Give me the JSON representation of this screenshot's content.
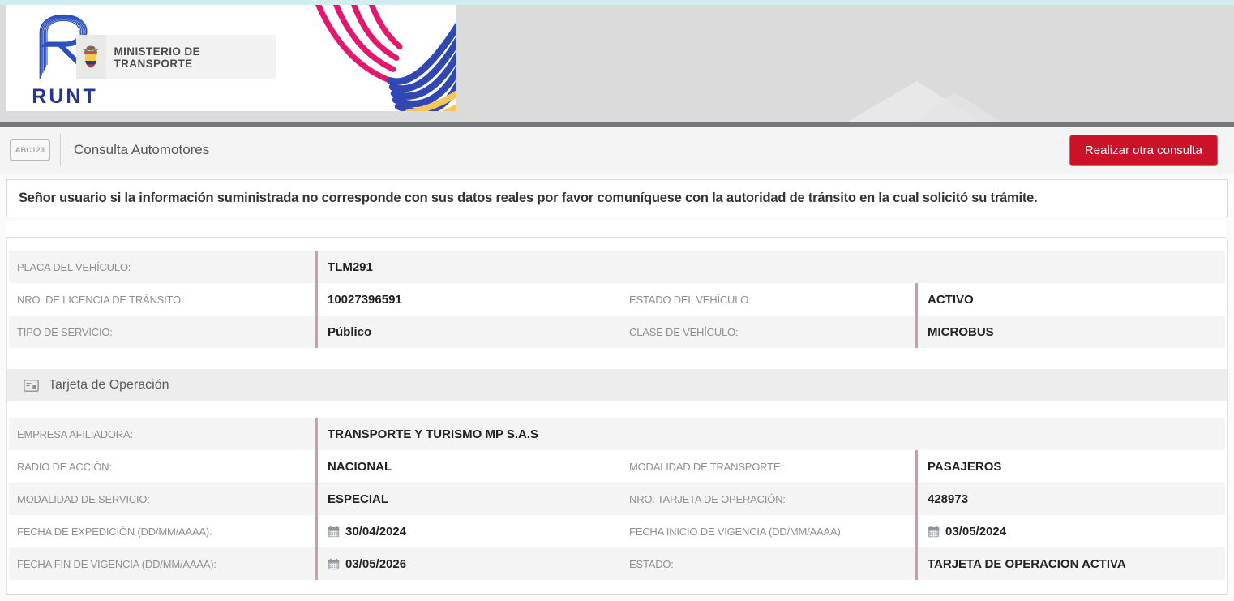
{
  "header": {
    "runt_wordmark": "RUNT",
    "ministry_name": "MINISTERIO DE TRANSPORTE"
  },
  "toolbar": {
    "plate_badge": "ABC123",
    "title": "Consulta Automotores",
    "new_search_button": "Realizar otra consulta"
  },
  "notice": "Señor usuario si la información suministrada no corresponde con sus datos reales por favor comuníquese con la autoridad de tránsito en la cual solicitó su trámite.",
  "vehicle_table": {
    "rows": [
      {
        "label": "PLACA DEL VEHÍCULO:",
        "value": "TLM291",
        "full": true
      },
      {
        "label": "NRO. DE LICENCIA DE TRÁNSITO:",
        "value": "10027396591",
        "label2": "ESTADO DEL VEHÍCULO:",
        "value2": "ACTIVO"
      },
      {
        "label": "TIPO DE SERVICIO:",
        "value": "Público",
        "label2": "CLASE DE VEHÍCULO:",
        "value2": "MICROBUS"
      }
    ]
  },
  "operation_card": {
    "title": "Tarjeta de Operación",
    "rows": [
      {
        "label": "EMPRESA AFILIADORA:",
        "value": "TRANSPORTE Y TURISMO MP S.A.S",
        "full": true
      },
      {
        "label": "RADIO DE ACCIÓN:",
        "value": "NACIONAL",
        "label2": "MODALIDAD DE TRANSPORTE:",
        "value2": "PASAJEROS"
      },
      {
        "label": "MODALIDAD DE SERVICIO:",
        "value": "ESPECIAL",
        "label2": "NRO. TARJETA DE OPERACIÓN:",
        "value2": "428973"
      },
      {
        "label": "FECHA DE EXPEDICIÓN (DD/MM/AAAA):",
        "value": "30/04/2024",
        "calendar": true,
        "label2": "FECHA INICIO DE VIGENCIA (DD/MM/AAAA):",
        "value2": "03/05/2024",
        "calendar2": true
      },
      {
        "label": "FECHA FIN DE VIGENCIA (DD/MM/AAAA):",
        "value": "03/05/2026",
        "calendar": true,
        "label2": "ESTADO:",
        "value2": "TARJETA DE OPERACION ACTIVA"
      }
    ]
  },
  "colors": {
    "accent_red": "#CB1228",
    "brand_blue": "#2A4FC0",
    "wordmark_navy": "#24368F",
    "wave_pink": "#E2186F",
    "wave_blue": "#3148B4",
    "wave_yellow": "#F6C65B",
    "value_divider_pink": "#C9A0A2",
    "top_border_cyan": "#D2ECF0",
    "header_gray": "#DBDBDB"
  }
}
